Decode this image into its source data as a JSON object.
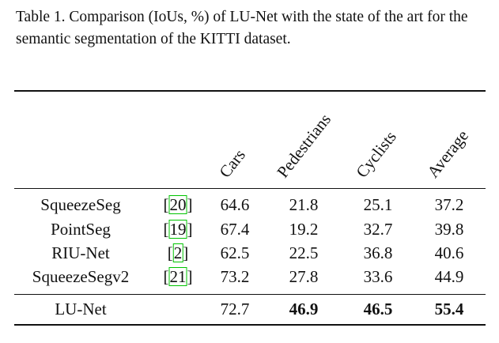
{
  "caption": "Table 1. Comparison (IoUs, %) of LU-Net with the state of the art for the semantic segmentation of the KITTI dataset.",
  "table": {
    "headers": [
      "Cars",
      "Pedestrians",
      "Cyclists",
      "Average"
    ],
    "rows": [
      {
        "method": "SqueezeSeg",
        "cite": "20",
        "cars": "64.6",
        "pedestrians": "21.8",
        "cyclists": "25.1",
        "average": "37.2"
      },
      {
        "method": "PointSeg",
        "cite": "19",
        "cars": "67.4",
        "pedestrians": "19.2",
        "cyclists": "32.7",
        "average": "39.8"
      },
      {
        "method": "RIU-Net",
        "cite": "2",
        "cars": "62.5",
        "pedestrians": "22.5",
        "cyclists": "36.8",
        "average": "40.6"
      },
      {
        "method": "SqueezeSegv2",
        "cite": "21",
        "cars": "73.2",
        "pedestrians": "27.8",
        "cyclists": "33.6",
        "average": "44.9"
      }
    ],
    "ours": {
      "method": "LU-Net",
      "cars": "72.7",
      "pedestrians": "46.9",
      "cyclists": "46.5",
      "average": "55.4"
    }
  }
}
